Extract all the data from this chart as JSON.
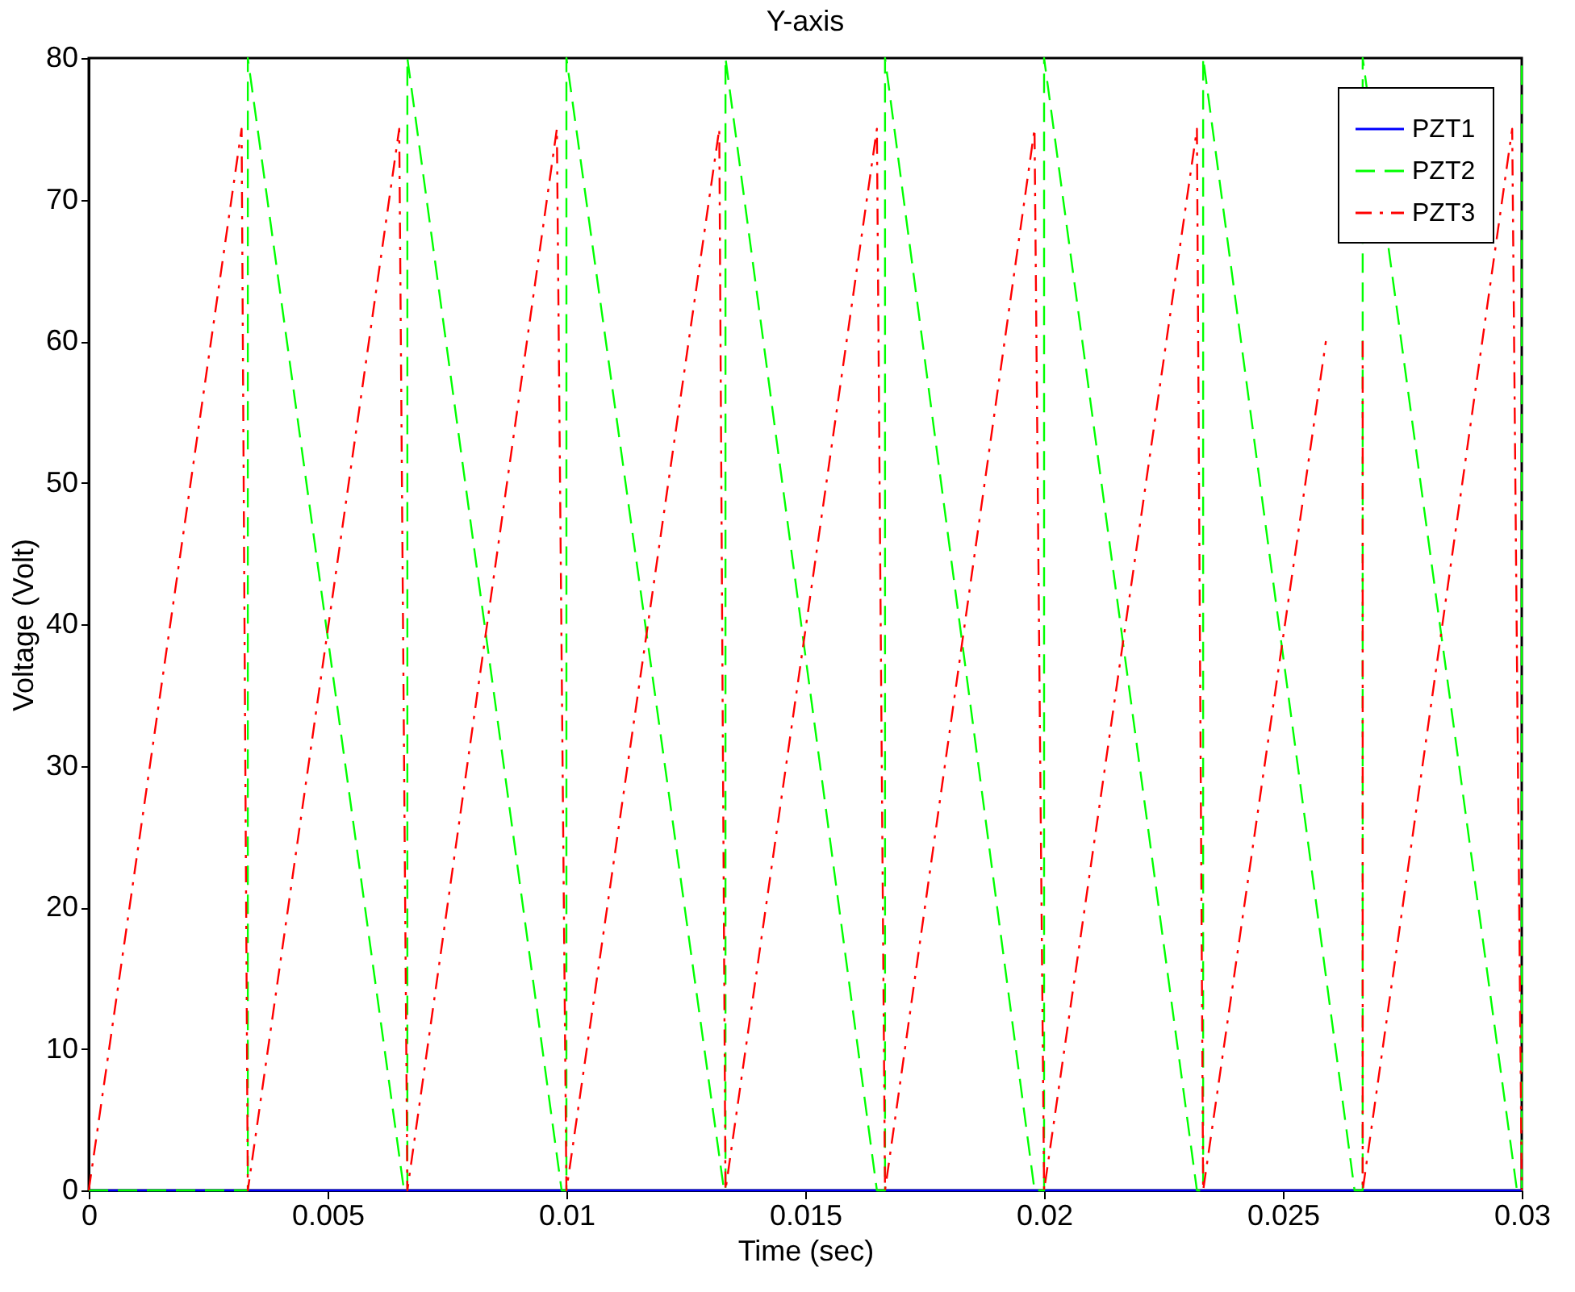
{
  "chart_data": {
    "type": "line",
    "title": "Y-axis",
    "xlabel": "Time (sec)",
    "ylabel": "Voltage (Volt)",
    "xlim": [
      0,
      0.03
    ],
    "xticks": [
      0,
      0.005,
      0.01,
      0.015,
      0.02,
      0.025,
      0.03
    ],
    "ylim": [
      0,
      80
    ],
    "yticks": [
      0,
      10,
      20,
      30,
      40,
      50,
      60,
      70,
      80
    ],
    "grid": false,
    "legend": "top right",
    "marker": "none",
    "series": [
      {
        "name": "PZT1",
        "color": "#0000ff",
        "line_style": "solid",
        "x": [
          0,
          0.03
        ],
        "values": [
          0,
          0
        ]
      },
      {
        "name": "PZT2",
        "color": "#00ff00",
        "line_style": "dashed",
        "x": [
          0,
          0.00333,
          0.00333,
          0.0066,
          0.00667,
          0.00667,
          0.0099,
          0.01,
          0.01,
          0.0133,
          0.01333,
          0.01333,
          0.0165,
          0.01667,
          0.01667,
          0.0198,
          0.02,
          0.02,
          0.0232,
          0.02333,
          0.02333,
          0.0265,
          0.02667,
          0.02667,
          0.0299,
          0.03,
          0.03
        ],
        "values": [
          0,
          0,
          80,
          0,
          0,
          80,
          0,
          0,
          80,
          0,
          0,
          80,
          0,
          0,
          80,
          0,
          0,
          80,
          0,
          0,
          80,
          0,
          0,
          80,
          0,
          0,
          80
        ]
      },
      {
        "name": "PZT3",
        "color": "#ff0000",
        "line_style": "dashdot",
        "x": [
          0,
          0.0032,
          0.00333,
          0.0065,
          0.00667,
          0.0098,
          0.01,
          0.0132,
          0.01333,
          0.0165,
          0.01667,
          0.0198,
          0.02,
          0.0232,
          0.02333,
          0.0259,
          0.0265,
          0.02667,
          0.02667,
          0.0298,
          0.03
        ],
        "values": [
          0,
          75,
          0,
          75,
          0,
          75,
          0,
          75,
          0,
          75,
          0,
          75,
          0,
          75,
          0,
          60,
          null,
          60,
          0,
          75,
          0
        ]
      }
    ]
  }
}
